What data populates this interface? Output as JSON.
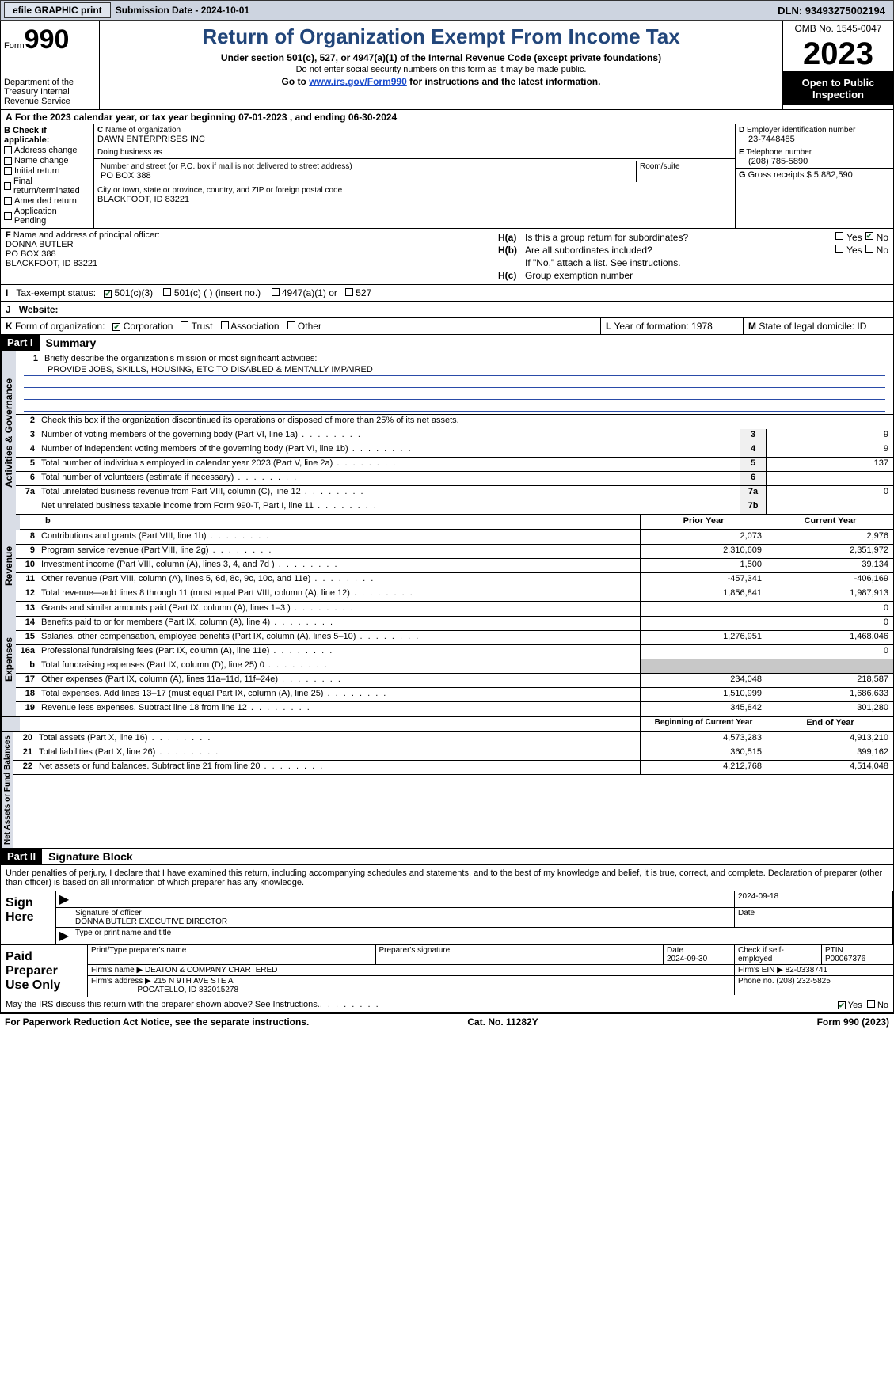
{
  "topbar": {
    "efile": "efile GRAPHIC print",
    "submission": "Submission Date - 2024-10-01",
    "dln": "DLN: 93493275002194"
  },
  "header": {
    "form_word": "Form",
    "form_num": "990",
    "title": "Return of Organization Exempt From Income Tax",
    "subtitle": "Under section 501(c), 527, or 4947(a)(1) of the Internal Revenue Code (except private foundations)",
    "note": "Do not enter social security numbers on this form as it may be made public.",
    "goto_pre": "Go to ",
    "goto_url": "www.irs.gov/Form990",
    "goto_post": " for instructions and the latest information.",
    "dept": "Department of the Treasury Internal Revenue Service",
    "omb": "OMB No. 1545-0047",
    "year": "2023",
    "open": "Open to Public Inspection"
  },
  "A": {
    "text": "For the 2023 calendar year, or tax year beginning 07-01-2023   , and ending 06-30-2024"
  },
  "B": {
    "label": "Check if applicable:",
    "opts": [
      "Address change",
      "Name change",
      "Initial return",
      "Final return/terminated",
      "Amended return",
      "Application Pending"
    ]
  },
  "C": {
    "name_lbl": "Name of organization",
    "name": "DAWN ENTERPRISES INC",
    "dba_lbl": "Doing business as",
    "dba": "",
    "addr_lbl": "Number and street (or P.O. box if mail is not delivered to street address)",
    "addr": "PO BOX 388",
    "room_lbl": "Room/suite",
    "city_lbl": "City or town, state or province, country, and ZIP or foreign postal code",
    "city": "BLACKFOOT, ID  83221"
  },
  "D": {
    "lbl": "Employer identification number",
    "val": "23-7448485"
  },
  "E": {
    "lbl": "Telephone number",
    "val": "(208) 785-5890"
  },
  "G": {
    "lbl": "Gross receipts $",
    "val": "5,882,590"
  },
  "F": {
    "lbl": "Name and address of principal officer:",
    "lines": [
      "DONNA BUTLER",
      "PO BOX 388",
      "BLACKFOOT, ID  83221"
    ]
  },
  "H": {
    "a": "Is this a group return for subordinates?",
    "b": "Are all subordinates included?",
    "note": "If \"No,\" attach a list. See instructions.",
    "c": "Group exemption number",
    "yes": "Yes",
    "no": "No"
  },
  "I": {
    "lbl": "Tax-exempt status:",
    "opts": [
      "501(c)(3)",
      "501(c) (  ) (insert no.)",
      "4947(a)(1) or",
      "527"
    ]
  },
  "J": {
    "lbl": "Website:"
  },
  "K": {
    "lbl": "Form of organization:",
    "opts": [
      "Corporation",
      "Trust",
      "Association",
      "Other"
    ],
    "L": "Year of formation: 1978",
    "M": "State of legal domicile: ID"
  },
  "part1": {
    "hdr": "Part I",
    "title": "Summary",
    "line1_lbl": "Briefly describe the organization's mission or most significant activities:",
    "mission": "PROVIDE JOBS, SKILLS, HOUSING, ETC TO DISABLED & MENTALLY IMPAIRED",
    "line2": "Check this box      if the organization discontinued its operations or disposed of more than 25% of its net assets.",
    "gov_tab": "Activities & Governance",
    "rev_tab": "Revenue",
    "exp_tab": "Expenses",
    "net_tab": "Net Assets or Fund Balances",
    "lines_gov": [
      {
        "n": "3",
        "t": "Number of voting members of the governing body (Part VI, line 1a)",
        "box": "3",
        "v": "9"
      },
      {
        "n": "4",
        "t": "Number of independent voting members of the governing body (Part VI, line 1b)",
        "box": "4",
        "v": "9"
      },
      {
        "n": "5",
        "t": "Total number of individuals employed in calendar year 2023 (Part V, line 2a)",
        "box": "5",
        "v": "137"
      },
      {
        "n": "6",
        "t": "Total number of volunteers (estimate if necessary)",
        "box": "6",
        "v": ""
      },
      {
        "n": "7a",
        "t": "Total unrelated business revenue from Part VIII, column (C), line 12",
        "box": "7a",
        "v": "0"
      },
      {
        "n": "",
        "t": "Net unrelated business taxable income from Form 990-T, Part I, line 11",
        "box": "7b",
        "v": ""
      }
    ],
    "prior": "Prior Year",
    "current": "Current Year",
    "lines_rev": [
      {
        "n": "8",
        "t": "Contributions and grants (Part VIII, line 1h)",
        "p": "2,073",
        "c": "2,976"
      },
      {
        "n": "9",
        "t": "Program service revenue (Part VIII, line 2g)",
        "p": "2,310,609",
        "c": "2,351,972"
      },
      {
        "n": "10",
        "t": "Investment income (Part VIII, column (A), lines 3, 4, and 7d )",
        "p": "1,500",
        "c": "39,134"
      },
      {
        "n": "11",
        "t": "Other revenue (Part VIII, column (A), lines 5, 6d, 8c, 9c, 10c, and 11e)",
        "p": "-457,341",
        "c": "-406,169"
      },
      {
        "n": "12",
        "t": "Total revenue—add lines 8 through 11 (must equal Part VIII, column (A), line 12)",
        "p": "1,856,841",
        "c": "1,987,913"
      }
    ],
    "lines_exp": [
      {
        "n": "13",
        "t": "Grants and similar amounts paid (Part IX, column (A), lines 1–3 )",
        "p": "",
        "c": "0"
      },
      {
        "n": "14",
        "t": "Benefits paid to or for members (Part IX, column (A), line 4)",
        "p": "",
        "c": "0"
      },
      {
        "n": "15",
        "t": "Salaries, other compensation, employee benefits (Part IX, column (A), lines 5–10)",
        "p": "1,276,951",
        "c": "1,468,046"
      },
      {
        "n": "16a",
        "t": "Professional fundraising fees (Part IX, column (A), line 11e)",
        "p": "",
        "c": "0"
      },
      {
        "n": "b",
        "t": "Total fundraising expenses (Part IX, column (D), line 25) 0",
        "p": "SHADE",
        "c": "SHADE"
      },
      {
        "n": "17",
        "t": "Other expenses (Part IX, column (A), lines 11a–11d, 11f–24e)",
        "p": "234,048",
        "c": "218,587"
      },
      {
        "n": "18",
        "t": "Total expenses. Add lines 13–17 (must equal Part IX, column (A), line 25)",
        "p": "1,510,999",
        "c": "1,686,633"
      },
      {
        "n": "19",
        "t": "Revenue less expenses. Subtract line 18 from line 12",
        "p": "345,842",
        "c": "301,280"
      }
    ],
    "begin": "Beginning of Current Year",
    "end": "End of Year",
    "lines_net": [
      {
        "n": "20",
        "t": "Total assets (Part X, line 16)",
        "p": "4,573,283",
        "c": "4,913,210"
      },
      {
        "n": "21",
        "t": "Total liabilities (Part X, line 26)",
        "p": "360,515",
        "c": "399,162"
      },
      {
        "n": "22",
        "t": "Net assets or fund balances. Subtract line 21 from line 20",
        "p": "4,212,768",
        "c": "4,514,048"
      }
    ]
  },
  "part2": {
    "hdr": "Part II",
    "title": "Signature Block",
    "declare": "Under penalties of perjury, I declare that I have examined this return, including accompanying schedules and statements, and to the best of my knowledge and belief, it is true, correct, and complete. Declaration of preparer (other than officer) is based on all information of which preparer has any knowledge.",
    "sign_here": "Sign Here",
    "sig_officer_lbl": "Signature of officer",
    "sig_officer": "DONNA BUTLER  EXECUTIVE DIRECTOR",
    "type_name_lbl": "Type or print name and title",
    "date_lbl": "Date",
    "date1": "2024-09-18",
    "paid": "Paid Preparer Use Only",
    "prep_name_lbl": "Print/Type preparer's name",
    "prep_sig_lbl": "Preparer's signature",
    "date2": "2024-09-30",
    "self_emp": "Check       if self-employed",
    "ptin_lbl": "PTIN",
    "ptin": "P00067376",
    "firm_name_lbl": "Firm's name",
    "firm_name": "DEATON & COMPANY CHARTERED",
    "firm_ein_lbl": "Firm's EIN",
    "firm_ein": "82-0338741",
    "firm_addr_lbl": "Firm's address",
    "firm_addr1": "215 N 9TH AVE STE A",
    "firm_addr2": "POCATELLO, ID  832015278",
    "phone_lbl": "Phone no.",
    "phone": "(208) 232-5825",
    "may_irs": "May the IRS discuss this return with the preparer shown above? See Instructions.",
    "yes": "Yes",
    "no": "No"
  },
  "footer": {
    "left": "For Paperwork Reduction Act Notice, see the separate instructions.",
    "mid": "Cat. No. 11282Y",
    "right_pre": "Form ",
    "right_bold": "990",
    "right_post": " (2023)"
  }
}
